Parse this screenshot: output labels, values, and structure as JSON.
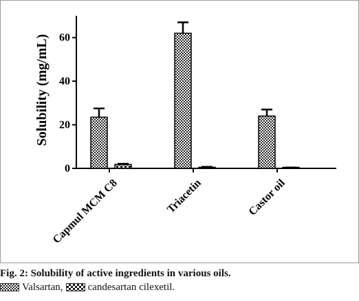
{
  "chart_data": {
    "type": "bar",
    "categories": [
      "Capmul MCM C8",
      "Triacetin",
      "Castor oil"
    ],
    "series": [
      {
        "name": "Valsartan",
        "values": [
          23.5,
          62,
          24
        ],
        "errors": [
          4,
          5,
          3
        ],
        "pattern": "fine-check"
      },
      {
        "name": "candesartan cilexetil",
        "values": [
          1.8,
          0.5,
          0.3
        ],
        "errors": [
          0.3,
          0.2,
          0.1
        ],
        "pattern": "coarse-check"
      }
    ],
    "ylabel": "Solubility (mg/mL)",
    "xlabel": "",
    "ylim": [
      0,
      70
    ],
    "yticks": [
      0,
      20,
      40,
      60
    ],
    "grid": false
  },
  "caption": {
    "title": "Fig. 2: Solubility of active ingredients in various oils.",
    "legend_series_1": "Valsartan,",
    "legend_series_2": "candesartan cilexetil."
  }
}
